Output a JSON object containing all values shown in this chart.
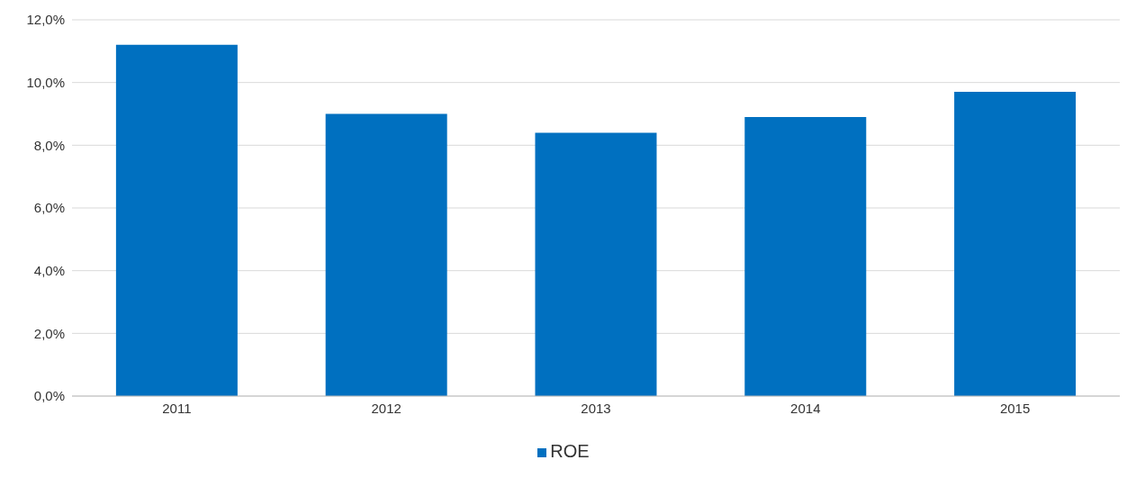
{
  "chart_data": {
    "type": "bar",
    "categories": [
      "2011",
      "2012",
      "2013",
      "2014",
      "2015"
    ],
    "series": [
      {
        "name": "ROE",
        "color": "#0070c0",
        "values": [
          11.2,
          9.0,
          8.4,
          8.9,
          9.7
        ]
      }
    ],
    "ylim": [
      0,
      12
    ],
    "yticks": [
      {
        "value": 0,
        "label": "0,0%"
      },
      {
        "value": 2,
        "label": "2,0%"
      },
      {
        "value": 4,
        "label": "4,0%"
      },
      {
        "value": 6,
        "label": "6,0%"
      },
      {
        "value": 8,
        "label": "8,0%"
      },
      {
        "value": 10,
        "label": "10,0%"
      },
      {
        "value": 12,
        "label": "12,0%"
      }
    ],
    "grid": "y",
    "legend": "bottom"
  }
}
